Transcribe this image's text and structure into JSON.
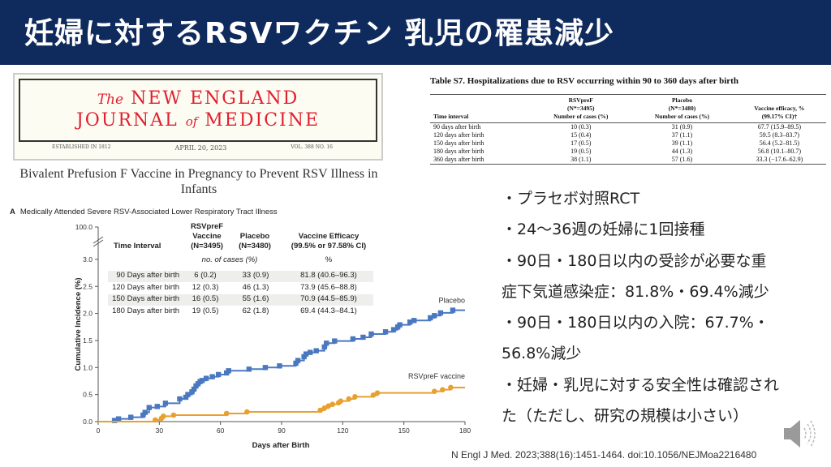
{
  "title": "妊婦に対するRSVワクチン 乳児の罹患減少",
  "nejm": {
    "the": "The",
    "line1": "NEW ENGLAND",
    "line2a": "JOURNAL",
    "of": "of",
    "line2b": "MEDICINE",
    "established": "ESTABLISHED IN 1812",
    "date": "APRIL 20, 2023",
    "vol": "VOL. 388   NO. 16"
  },
  "article_title": "Bivalent Prefusion F Vaccine in Pregnancy to Prevent RSV Illness in Infants",
  "table_s7": {
    "title": "Table S7. Hospitalizations due to RSV occurring within 90 to 360 days after birth",
    "headers": [
      "Time interval",
      "RSVpreF\n(N*=3495)\nNumber of cases (%)",
      "Placebo\n(N*=3480)\nNumber of cases (%)",
      "Vaccine efficacy, %\n(99.17% CI)†"
    ],
    "rows": [
      [
        "90 days after birth",
        "10 (0.3)",
        "31 (0.9)",
        "67.7 (15.9–89.5)"
      ],
      [
        "120 days after birth",
        "15 (0.4)",
        "37 (1.1)",
        "59.5 (8.3–83.7)"
      ],
      [
        "150 days after birth",
        "17 (0.5)",
        "39 (1.1)",
        "56.4 (5.2–81.5)"
      ],
      [
        "180 days after birth",
        "19 (0.5)",
        "44 (1.3)",
        "56.8 (10.1–80.7)"
      ],
      [
        "360 days after birth",
        "38 (1.1)",
        "57 (1.6)",
        "33.3 (−17.6–62.9)"
      ]
    ]
  },
  "panel": {
    "letter": "A",
    "title": "Medically Attended Severe RSV-Associated Lower Respiratory Tract Illness",
    "table": {
      "h_interval": "Time Interval",
      "h_vaccine": "RSVpreF\nVaccine\n(N=3495)",
      "h_placebo": "Placebo\n(N=3480)",
      "h_efficacy": "Vaccine Efficacy\n(99.5% or 97.58% CI)",
      "sub_cases": "no. of cases (%)",
      "sub_pct": "%",
      "rows": [
        [
          "90 Days after birth",
          "6 (0.2)",
          "33 (0.9)",
          "81.8 (40.6–96.3)"
        ],
        [
          "120 Days after birth",
          "12 (0.3)",
          "46 (1.3)",
          "73.9 (45.6–88.8)"
        ],
        [
          "150 Days after birth",
          "16 (0.5)",
          "55 (1.6)",
          "70.9 (44.5–85.9)"
        ],
        [
          "180 Days after birth",
          "19 (0.5)",
          "62 (1.8)",
          "69.4 (44.3–84.1)"
        ]
      ]
    }
  },
  "chart_data": {
    "type": "line",
    "xlabel": "Days after Birth",
    "ylabel": "Cumulative Incidence (%)",
    "xlim": [
      0,
      180
    ],
    "xticks": [
      "0",
      "30",
      "60",
      "90",
      "120",
      "150",
      "180"
    ],
    "yticks": [
      "0.0",
      "0.5",
      "1.0",
      "1.5",
      "2.0",
      "2.5",
      "3.0",
      "100.0"
    ],
    "ylim": [
      0,
      3.0
    ],
    "axis_break": true,
    "series": [
      {
        "name": "Placebo",
        "color": "#4a78c0",
        "marker": "square",
        "points": [
          [
            0,
            0
          ],
          [
            8,
            0.02
          ],
          [
            10,
            0.05
          ],
          [
            16,
            0.08
          ],
          [
            22,
            0.12
          ],
          [
            23,
            0.17
          ],
          [
            25,
            0.26
          ],
          [
            29,
            0.28
          ],
          [
            33,
            0.34
          ],
          [
            40,
            0.42
          ],
          [
            43,
            0.45
          ],
          [
            44,
            0.5
          ],
          [
            46,
            0.55
          ],
          [
            47,
            0.6
          ],
          [
            48,
            0.66
          ],
          [
            49,
            0.7
          ],
          [
            50,
            0.74
          ],
          [
            51,
            0.76
          ],
          [
            53,
            0.8
          ],
          [
            56,
            0.83
          ],
          [
            59,
            0.87
          ],
          [
            63,
            0.9
          ],
          [
            64,
            0.94
          ],
          [
            74,
            0.97
          ],
          [
            82,
            1.0
          ],
          [
            89,
            1.03
          ],
          [
            97,
            1.08
          ],
          [
            98,
            1.13
          ],
          [
            101,
            1.2
          ],
          [
            102,
            1.25
          ],
          [
            104,
            1.28
          ],
          [
            107,
            1.31
          ],
          [
            111,
            1.38
          ],
          [
            112,
            1.45
          ],
          [
            116,
            1.49
          ],
          [
            125,
            1.53
          ],
          [
            130,
            1.56
          ],
          [
            134,
            1.62
          ],
          [
            141,
            1.66
          ],
          [
            145,
            1.7
          ],
          [
            147,
            1.75
          ],
          [
            148,
            1.79
          ],
          [
            153,
            1.84
          ],
          [
            155,
            1.87
          ],
          [
            163,
            1.92
          ],
          [
            165,
            1.96
          ],
          [
            168,
            2.01
          ],
          [
            174,
            2.06
          ],
          [
            180,
            2.06
          ]
        ]
      },
      {
        "name": "RSVpreF vaccine",
        "color": "#e8a030",
        "marker": "circle",
        "points": [
          [
            0,
            0
          ],
          [
            28,
            0.03
          ],
          [
            31,
            0.06
          ],
          [
            32,
            0.1
          ],
          [
            37,
            0.12
          ],
          [
            63,
            0.15
          ],
          [
            73,
            0.18
          ],
          [
            109,
            0.21
          ],
          [
            111,
            0.25
          ],
          [
            113,
            0.29
          ],
          [
            115,
            0.32
          ],
          [
            118,
            0.35
          ],
          [
            119,
            0.38
          ],
          [
            123,
            0.42
          ],
          [
            126,
            0.46
          ],
          [
            135,
            0.49
          ],
          [
            137,
            0.53
          ],
          [
            165,
            0.56
          ],
          [
            169,
            0.59
          ],
          [
            173,
            0.63
          ],
          [
            180,
            0.63
          ]
        ]
      }
    ]
  },
  "bullets": [
    "・プラセボ対照RCT",
    "・24～36週の妊婦に1回接種",
    "・90日・180日以内の受診が必要な重",
    "症下気道感染症：81.8%・69.4%減少",
    "・90日・180日以内の入院：67.7%・",
    "56.8%減少",
    "・妊婦・乳児に対する安全性は確認され",
    "た（ただし、研究の規模は小さい）"
  ],
  "citation": "N Engl J Med. 2023;388(16):1451-1464. doi:10.1056/NEJMoa2216480"
}
